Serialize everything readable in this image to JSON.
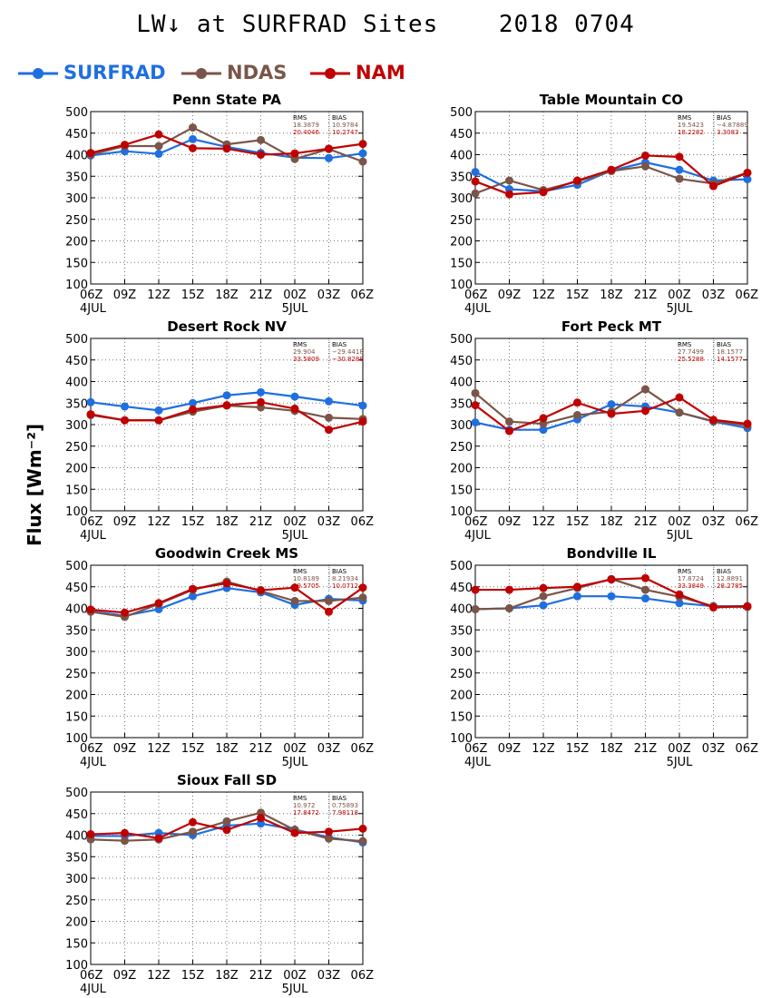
{
  "header": {
    "title": "LW↓ at SURFRAD Sites    2018 0704",
    "y_axis_label": "Flux [Wm⁻²]"
  },
  "legend": [
    {
      "name": "SURFRAD",
      "color": "#1f6fe0"
    },
    {
      "name": "NDAS",
      "color": "#7a5548"
    },
    {
      "name": "NAM",
      "color": "#c00000"
    }
  ],
  "chart_data": [
    {
      "type": "line",
      "title": "Penn State PA",
      "x": [
        "06Z",
        "09Z",
        "12Z",
        "15Z",
        "18Z",
        "21Z",
        "00Z",
        "03Z",
        "06Z"
      ],
      "date_labels": [
        "4JUL",
        "",
        "",
        "",
        "",
        "",
        "5JUL",
        "",
        ""
      ],
      "ylim": [
        100,
        500
      ],
      "yticks": [
        100,
        150,
        200,
        250,
        300,
        350,
        400,
        450,
        500
      ],
      "grid": true,
      "series": [
        {
          "name": "SURFRAD",
          "values": [
            398,
            408,
            402,
            436,
            418,
            404,
            393,
            392,
            403
          ]
        },
        {
          "name": "NDAS",
          "values": [
            400,
            420,
            420,
            463,
            424,
            434,
            390,
            413,
            384
          ]
        },
        {
          "name": "NAM",
          "values": [
            404,
            423,
            447,
            415,
            414,
            400,
            403,
            414,
            425
          ]
        }
      ],
      "stats": {
        "rms_label": "RMS",
        "bias_label": "BIAS",
        "ndas": [
          "18.3879",
          "10.9784"
        ],
        "nam": [
          "20.4046",
          "10.2747"
        ]
      }
    },
    {
      "type": "line",
      "title": "Table Mountain CO",
      "x": [
        "06Z",
        "09Z",
        "12Z",
        "15Z",
        "18Z",
        "21Z",
        "00Z",
        "03Z",
        "06Z"
      ],
      "date_labels": [
        "4JUL",
        "",
        "",
        "",
        "",
        "",
        "5JUL",
        "",
        ""
      ],
      "ylim": [
        100,
        500
      ],
      "yticks": [
        100,
        150,
        200,
        250,
        300,
        350,
        400,
        450,
        500
      ],
      "grid": true,
      "series": [
        {
          "name": "SURFRAD",
          "values": [
            360,
            320,
            315,
            330,
            363,
            382,
            365,
            340,
            343
          ]
        },
        {
          "name": "NDAS",
          "values": [
            310,
            340,
            318,
            338,
            362,
            373,
            344,
            333,
            358
          ]
        },
        {
          "name": "NAM",
          "values": [
            338,
            308,
            313,
            340,
            365,
            398,
            395,
            327,
            358
          ]
        }
      ],
      "stats": {
        "rms_label": "RMS",
        "bias_label": "BIAS",
        "ndas": [
          "19.5423",
          "−4.87889"
        ],
        "nam": [
          "18.2282",
          "3.3083"
        ]
      }
    },
    {
      "type": "line",
      "title": "Desert Rock NV",
      "x": [
        "06Z",
        "09Z",
        "12Z",
        "15Z",
        "18Z",
        "21Z",
        "00Z",
        "03Z",
        "06Z"
      ],
      "date_labels": [
        "4JUL",
        "",
        "",
        "",
        "",
        "",
        "5JUL",
        "",
        ""
      ],
      "ylim": [
        100,
        500
      ],
      "yticks": [
        100,
        150,
        200,
        250,
        300,
        350,
        400,
        450,
        500
      ],
      "grid": true,
      "series": [
        {
          "name": "SURFRAD",
          "values": [
            352,
            342,
            333,
            350,
            368,
            375,
            365,
            354,
            344
          ]
        },
        {
          "name": "NDAS",
          "values": [
            322,
            310,
            310,
            330,
            344,
            340,
            332,
            316,
            313
          ]
        },
        {
          "name": "NAM",
          "values": [
            324,
            310,
            310,
            335,
            345,
            352,
            337,
            288,
            307
          ]
        }
      ],
      "stats": {
        "rms_label": "RMS",
        "bias_label": "BIAS",
        "ndas": [
          "29.904",
          "−29.4418"
        ],
        "nam": [
          "33.5809",
          "−30.8288"
        ]
      }
    },
    {
      "type": "line",
      "title": "Fort Peck MT",
      "x": [
        "06Z",
        "09Z",
        "12Z",
        "15Z",
        "18Z",
        "21Z",
        "00Z",
        "03Z",
        "06Z"
      ],
      "date_labels": [
        "4JUL",
        "",
        "",
        "",
        "",
        "",
        "5JUL",
        "",
        ""
      ],
      "ylim": [
        100,
        500
      ],
      "yticks": [
        100,
        150,
        200,
        250,
        300,
        350,
        400,
        450,
        500
      ],
      "grid": true,
      "series": [
        {
          "name": "SURFRAD",
          "values": [
            305,
            288,
            288,
            312,
            347,
            342,
            328,
            307,
            292
          ]
        },
        {
          "name": "NDAS",
          "values": [
            373,
            307,
            302,
            322,
            330,
            382,
            328,
            308,
            298
          ]
        },
        {
          "name": "NAM",
          "values": [
            345,
            285,
            315,
            351,
            325,
            332,
            363,
            311,
            302
          ]
        }
      ],
      "stats": {
        "rms_label": "RMS",
        "bias_label": "BIAS",
        "ndas": [
          "27.7499",
          "18.1577"
        ],
        "nam": [
          "25.5288",
          "14.1577"
        ]
      }
    },
    {
      "type": "line",
      "title": "Goodwin Creek MS",
      "x": [
        "06Z",
        "09Z",
        "12Z",
        "15Z",
        "18Z",
        "21Z",
        "00Z",
        "03Z",
        "06Z"
      ],
      "date_labels": [
        "4JUL",
        "",
        "",
        "",
        "",
        "",
        "5JUL",
        "",
        ""
      ],
      "ylim": [
        100,
        500
      ],
      "yticks": [
        100,
        150,
        200,
        250,
        300,
        350,
        400,
        450,
        500
      ],
      "grid": true,
      "series": [
        {
          "name": "SURFRAD",
          "values": [
            393,
            383,
            398,
            428,
            447,
            437,
            408,
            422,
            418
          ]
        },
        {
          "name": "NDAS",
          "values": [
            392,
            380,
            410,
            443,
            462,
            440,
            417,
            417,
            425
          ]
        },
        {
          "name": "NAM",
          "values": [
            397,
            390,
            412,
            445,
            458,
            442,
            448,
            392,
            448
          ]
        }
      ],
      "stats": {
        "rms_label": "RMS",
        "bias_label": "BIAS",
        "ndas": [
          "10.8189",
          "8.21934"
        ],
        "nam": [
          "19.5705",
          "10.0712"
        ]
      }
    },
    {
      "type": "line",
      "title": "Bondville IL",
      "x": [
        "06Z",
        "09Z",
        "12Z",
        "15Z",
        "18Z",
        "21Z",
        "00Z",
        "03Z",
        "06Z"
      ],
      "date_labels": [
        "4JUL",
        "",
        "",
        "",
        "",
        "",
        "5JUL",
        "",
        ""
      ],
      "ylim": [
        100,
        500
      ],
      "yticks": [
        100,
        150,
        200,
        250,
        300,
        350,
        400,
        450,
        500
      ],
      "grid": true,
      "series": [
        {
          "name": "SURFRAD",
          "values": [
            398,
            400,
            407,
            428,
            428,
            423,
            412,
            405,
            405
          ]
        },
        {
          "name": "NDAS",
          "values": [
            398,
            400,
            428,
            447,
            468,
            443,
            427,
            405,
            403
          ]
        },
        {
          "name": "NAM",
          "values": [
            443,
            443,
            447,
            450,
            467,
            470,
            432,
            402,
            405
          ]
        }
      ],
      "stats": {
        "rms_label": "RMS",
        "bias_label": "BIAS",
        "ndas": [
          "17.8724",
          "12.8891"
        ],
        "nam": [
          "33.3849",
          "28.2785"
        ]
      }
    },
    {
      "type": "line",
      "title": "Sioux Fall SD",
      "x": [
        "06Z",
        "09Z",
        "12Z",
        "15Z",
        "18Z",
        "21Z",
        "00Z",
        "03Z",
        "06Z"
      ],
      "date_labels": [
        "4JUL",
        "",
        "",
        "",
        "",
        "",
        "5JUL",
        "",
        ""
      ],
      "ylim": [
        100,
        500
      ],
      "yticks": [
        100,
        150,
        200,
        250,
        300,
        350,
        400,
        450,
        500
      ],
      "grid": true,
      "series": [
        {
          "name": "SURFRAD",
          "values": [
            398,
            398,
            405,
            400,
            422,
            427,
            413,
            395,
            383
          ]
        },
        {
          "name": "NDAS",
          "values": [
            390,
            387,
            390,
            408,
            432,
            452,
            412,
            392,
            386
          ]
        },
        {
          "name": "NAM",
          "values": [
            402,
            405,
            393,
            430,
            412,
            440,
            405,
            408,
            415
          ]
        }
      ],
      "stats": {
        "rms_label": "RMS",
        "bias_label": "BIAS",
        "ndas": [
          "10.972",
          "0.75893"
        ],
        "nam": [
          "17.8472",
          "7.98118"
        ]
      }
    }
  ]
}
